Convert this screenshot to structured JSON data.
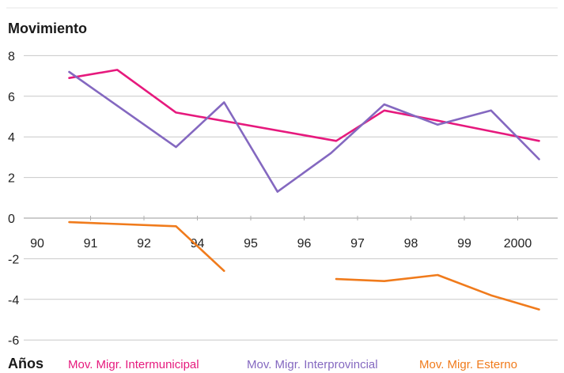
{
  "chart_data": {
    "type": "line",
    "ylabel": "Movimiento",
    "xlabel": "Años",
    "ylim": [
      -6,
      8
    ],
    "yticks": [
      8,
      6,
      4,
      2,
      0,
      -2,
      -4,
      -6
    ],
    "x_tick_labels": [
      "90",
      "91",
      "92",
      "94",
      "95",
      "96",
      "97",
      "98",
      "99",
      "2000"
    ],
    "grid": true,
    "legend_position": "bottom",
    "series": [
      {
        "name": "Mov. Migr. Intermunicipal",
        "color": "#e6197d",
        "points": [
          [
            0.6,
            6.9
          ],
          [
            1.5,
            7.3
          ],
          [
            2.6,
            5.2
          ],
          [
            5.6,
            3.8
          ],
          [
            6.5,
            5.3
          ],
          [
            7.5,
            4.8
          ],
          [
            9.4,
            3.8
          ]
        ]
      },
      {
        "name": "Mov. Migr. Interprovincial",
        "color": "#8468c0",
        "points": [
          [
            0.6,
            7.2
          ],
          [
            2.6,
            3.5
          ],
          [
            3.5,
            5.7
          ],
          [
            4.5,
            1.3
          ],
          [
            5.5,
            3.2
          ],
          [
            6.5,
            5.6
          ],
          [
            7.5,
            4.6
          ],
          [
            8.5,
            5.3
          ],
          [
            9.4,
            2.9
          ]
        ]
      },
      {
        "name": "Mov. Migr. Esterno",
        "color": "#f07b1c",
        "segments": [
          [
            [
              0.6,
              -0.2
            ],
            [
              2.6,
              -0.4
            ],
            [
              3.5,
              -2.6
            ]
          ],
          [
            [
              5.6,
              -3.0
            ],
            [
              6.5,
              -3.1
            ],
            [
              7.5,
              -2.8
            ],
            [
              8.5,
              -3.8
            ],
            [
              9.4,
              -4.5
            ]
          ]
        ]
      }
    ]
  }
}
